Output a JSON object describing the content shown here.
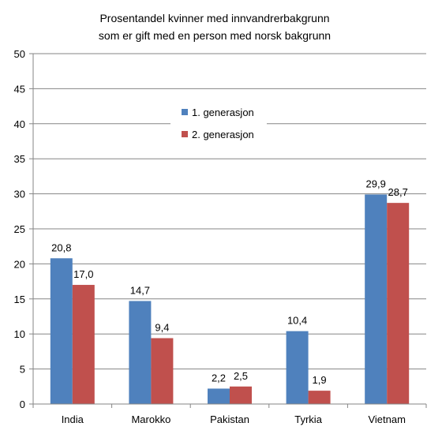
{
  "chart_data": {
    "type": "bar",
    "title_lines": [
      "Prosentandel kvinner  med innvandrerbakgrunn",
      "som er gift med en person med norsk bakgrunn"
    ],
    "categories": [
      "India",
      "Marokko",
      "Pakistan",
      "Tyrkia",
      "Vietnam"
    ],
    "series": [
      {
        "name": "1. generasjon",
        "color": "#4f81bd",
        "values": [
          20.8,
          14.7,
          2.2,
          10.4,
          29.9
        ],
        "labels": [
          "20,8",
          "14,7",
          "2,2",
          "10,4",
          "29,9"
        ]
      },
      {
        "name": "2. generasjon",
        "color": "#c0504d",
        "values": [
          17.0,
          9.4,
          2.5,
          1.9,
          28.7
        ],
        "labels": [
          "17,0",
          "9,4",
          "2,5",
          "1,9",
          "28,7"
        ]
      }
    ],
    "ylim": [
      0,
      50
    ],
    "yticks": [
      0,
      5,
      10,
      15,
      20,
      25,
      30,
      35,
      40,
      45,
      50
    ],
    "grid": true,
    "legend_position": "center"
  }
}
